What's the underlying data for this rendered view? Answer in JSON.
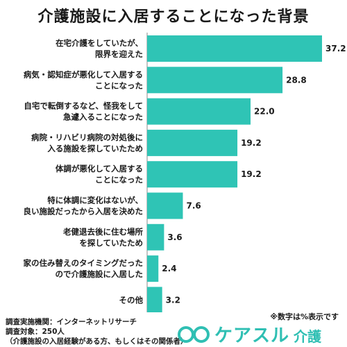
{
  "title": "介護施設に入居することになった背景",
  "note": "※数字は%表示です",
  "source": {
    "line1": "調査実施機関：インターネットリサーチ",
    "line2": "調査対象：250人",
    "line3": "（介護施設の入居経験がある方、もしくはその関係者）"
  },
  "logo": {
    "text": "ケアスル",
    "sub": "介護",
    "icon": "smile-logo-icon"
  },
  "colors": {
    "bar": "#2fc4b5",
    "axis": "#888888",
    "brand": "#2fbfb3"
  },
  "chart_data": {
    "type": "bar",
    "orientation": "horizontal",
    "unit": "%",
    "categories": [
      [
        "在宅介護をしていたが、",
        "限界を迎えた"
      ],
      [
        "病気・認知症が悪化して入居する",
        "ことになった"
      ],
      [
        "自宅で転倒するなど、怪我をして",
        "急遽入ることになった"
      ],
      [
        "病院・リハビリ病院の対処後に",
        "入る施設を探していたため"
      ],
      [
        "体調が悪化して入居する",
        "ことになった"
      ],
      [
        "特に体調に変化はないが、",
        "良い施設だったから入居を決めた"
      ],
      [
        "老健退去後に住む場所",
        "を探していたため"
      ],
      [
        "家の住み替えのタイミングだった",
        "ので介護施設に入居した"
      ],
      [
        "その他"
      ]
    ],
    "values": [
      37.2,
      28.8,
      22.0,
      19.2,
      19.2,
      7.6,
      3.6,
      2.4,
      3.2
    ],
    "value_labels": [
      "37.2",
      "28.8",
      "22.0",
      "19.2",
      "19.2",
      "7.6",
      "3.6",
      "2.4",
      "3.2"
    ],
    "xlim": [
      0,
      37.2
    ],
    "grid": false,
    "legend": "none"
  }
}
